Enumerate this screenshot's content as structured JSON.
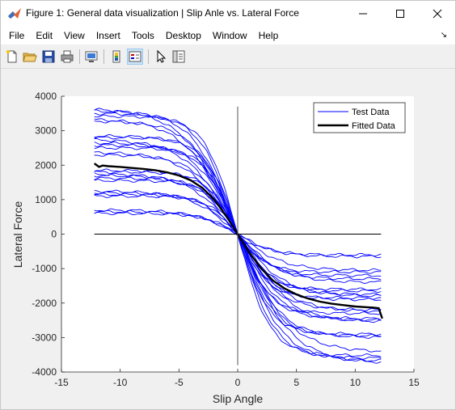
{
  "window": {
    "title": "Figure 1: General data visualization | Slip Anle vs. Lateral Force",
    "controls": {
      "minimize": "—",
      "maximize": "☐",
      "close": "✕"
    }
  },
  "menu": {
    "items": [
      "File",
      "Edit",
      "View",
      "Insert",
      "Tools",
      "Desktop",
      "Window",
      "Help"
    ],
    "corner_icon": "dock-arrow-icon"
  },
  "toolbar": {
    "buttons": [
      "new-figure-icon",
      "open-file-icon",
      "save-icon",
      "print-icon",
      "link-plot-icon",
      "insert-colorbar-icon",
      "insert-legend-icon",
      "edit-plot-icon",
      "property-inspector-icon"
    ]
  },
  "chart_data": {
    "type": "line",
    "title": "",
    "xlabel": "Slip Angle",
    "ylabel": "Lateral Force",
    "xlim": [
      -15,
      15
    ],
    "ylim": [
      -4000,
      4000
    ],
    "xticks": [
      "-15",
      "-10",
      "-5",
      "0",
      "5",
      "10",
      "15"
    ],
    "yticks": [
      "4000",
      "3000",
      "2000",
      "1000",
      "0",
      "-1000",
      "-2000",
      "-3000",
      "-4000"
    ],
    "grid": false,
    "legend": {
      "location": "top-right",
      "entries": [
        "Test Data",
        "Fitted Data"
      ]
    },
    "colors": {
      "test": "#0000ff",
      "fitted": "#000000"
    },
    "zero_lines": {
      "horizontal": {
        "y": 0,
        "x": [
          -12.2,
          12.2
        ]
      },
      "vertical": {
        "x": 0,
        "y": [
          -3800,
          3700
        ]
      }
    },
    "series": [
      {
        "name": "Test Data",
        "kind": "family of tire curves",
        "x_range": [
          -12.2,
          12.2
        ],
        "left_plateaus": [
          3650,
          3580,
          3500,
          3420,
          3350,
          3280,
          2850,
          2800,
          2750,
          2650,
          2580,
          2500,
          2380,
          2300,
          1850,
          1800,
          1750,
          1700,
          1620,
          1550,
          1250,
          1200,
          1150,
          1100,
          700,
          650,
          600
        ],
        "right_plateaus": [
          -3750,
          -3680,
          -3600,
          -3520,
          -3420,
          -3000,
          -2950,
          -2900,
          -2550,
          -2500,
          -2450,
          -2300,
          -2250,
          -2200,
          -1900,
          -1850,
          -1800,
          -1750,
          -1650,
          -1600,
          -1400,
          -1300,
          -1200,
          -1100,
          -1050,
          -650,
          -600
        ]
      },
      {
        "name": "Fitted Data",
        "x": [
          -12.2,
          -11.8,
          -11.5,
          -11,
          -10,
          -9,
          -8,
          -7,
          -6,
          -5,
          -4,
          -3,
          -2,
          -1,
          0,
          1,
          2,
          3,
          4,
          5,
          6,
          7,
          8,
          9,
          10,
          11,
          11.5,
          12,
          12.3
        ],
        "y": [
          2050,
          1950,
          1990,
          1970,
          1950,
          1920,
          1890,
          1850,
          1790,
          1700,
          1560,
          1340,
          1000,
          540,
          0,
          -540,
          -1000,
          -1350,
          -1580,
          -1750,
          -1870,
          -1960,
          -2020,
          -2060,
          -2100,
          -2120,
          -2130,
          -2150,
          -2450
        ]
      }
    ]
  }
}
